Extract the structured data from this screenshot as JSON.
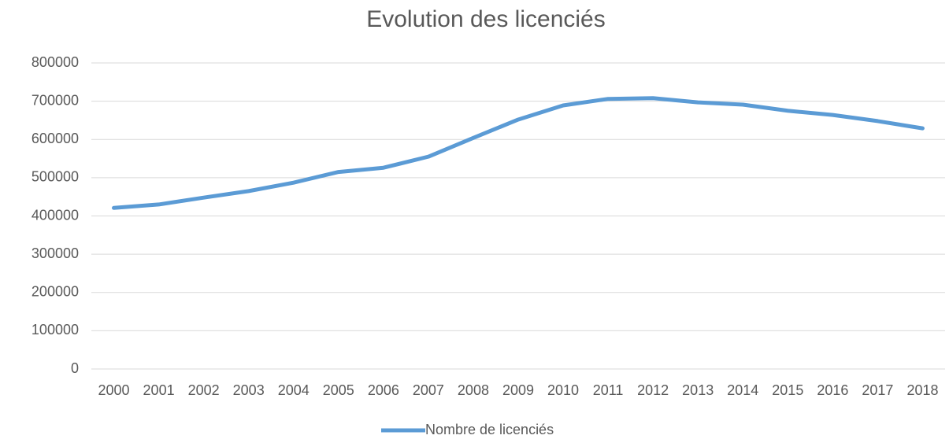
{
  "chart_data": {
    "type": "line",
    "title": "Evolution des licenciés",
    "categories": [
      "2000",
      "2001",
      "2002",
      "2003",
      "2004",
      "2005",
      "2006",
      "2007",
      "2008",
      "2009",
      "2010",
      "2011",
      "2012",
      "2013",
      "2014",
      "2015",
      "2016",
      "2017",
      "2018"
    ],
    "series": [
      {
        "name": "Nombre de licenciés",
        "color": "#5b9bd5",
        "values": [
          421000,
          430000,
          448000,
          465000,
          487000,
          515000,
          526000,
          555000,
          604000,
          652000,
          689000,
          706000,
          708000,
          697000,
          691000,
          675000,
          664000,
          648000,
          629000
        ]
      }
    ],
    "ylim": [
      0,
      800000
    ],
    "yticks": [
      0,
      100000,
      200000,
      300000,
      400000,
      500000,
      600000,
      700000,
      800000
    ],
    "grid": true,
    "legend": "bottom"
  }
}
